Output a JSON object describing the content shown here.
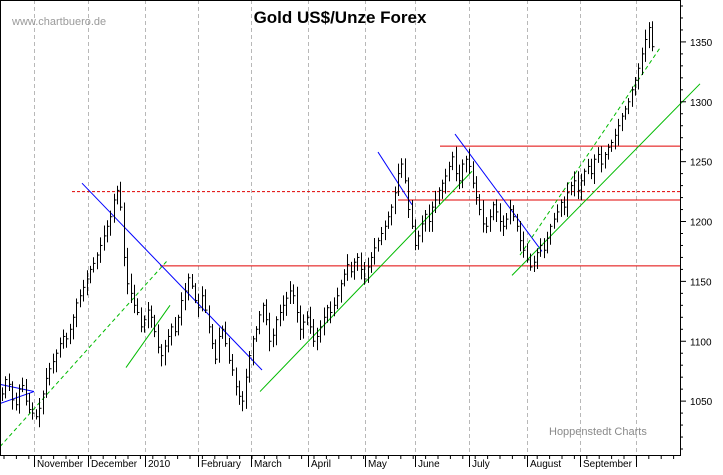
{
  "watermark": "www.chartbuero.de",
  "credit": "Hoppenstedt Charts",
  "chart_data": {
    "type": "ohlc",
    "title": "Gold US$/Unze Forex",
    "ylim": [
      1005,
      1385
    ],
    "y_ticks": [
      1050,
      1100,
      1150,
      1200,
      1250,
      1300,
      1350
    ],
    "grid": true,
    "months": [
      "November",
      "December",
      "2010",
      "February",
      "March",
      "April",
      "May",
      "June",
      "July",
      "August",
      "September"
    ],
    "closes": [
      1056,
      1068,
      1064,
      1051,
      1047,
      1060,
      1063,
      1050,
      1043,
      1040,
      1037,
      1044,
      1056,
      1069,
      1077,
      1083,
      1090,
      1098,
      1104,
      1102,
      1110,
      1120,
      1132,
      1138,
      1145,
      1152,
      1160,
      1165,
      1172,
      1180,
      1188,
      1196,
      1204,
      1218,
      1226,
      1212,
      1170,
      1148,
      1140,
      1130,
      1124,
      1112,
      1118,
      1126,
      1120,
      1108,
      1095,
      1088,
      1096,
      1104,
      1112,
      1108,
      1120,
      1134,
      1142,
      1153,
      1146,
      1134,
      1128,
      1138,
      1126,
      1112,
      1098,
      1085,
      1104,
      1110,
      1098,
      1084,
      1076,
      1062,
      1054,
      1050,
      1070,
      1088,
      1102,
      1110,
      1122,
      1130,
      1118,
      1100,
      1105,
      1118,
      1124,
      1130,
      1136,
      1142,
      1138,
      1124,
      1110,
      1116,
      1120,
      1112,
      1100,
      1104,
      1112,
      1120,
      1128,
      1124,
      1130,
      1138,
      1148,
      1156,
      1164,
      1158,
      1166,
      1170,
      1160,
      1152,
      1162,
      1170,
      1178,
      1184,
      1190,
      1196,
      1204,
      1212,
      1224,
      1240,
      1248,
      1234,
      1210,
      1196,
      1180,
      1188,
      1198,
      1206,
      1200,
      1212,
      1218,
      1226,
      1232,
      1238,
      1246,
      1254,
      1240,
      1234,
      1248,
      1252,
      1246,
      1232,
      1220,
      1210,
      1198,
      1196,
      1204,
      1214,
      1208,
      1200,
      1196,
      1202,
      1210,
      1204,
      1196,
      1184,
      1176,
      1168,
      1162,
      1166,
      1174,
      1180,
      1176,
      1186,
      1196,
      1202,
      1208,
      1216,
      1212,
      1224,
      1230,
      1234,
      1226,
      1234,
      1242,
      1246,
      1240,
      1252,
      1256,
      1248,
      1256,
      1262,
      1266,
      1272,
      1280,
      1288,
      1294,
      1300,
      1310,
      1318,
      1328,
      1340,
      1352,
      1362,
      1346
    ]
  }
}
